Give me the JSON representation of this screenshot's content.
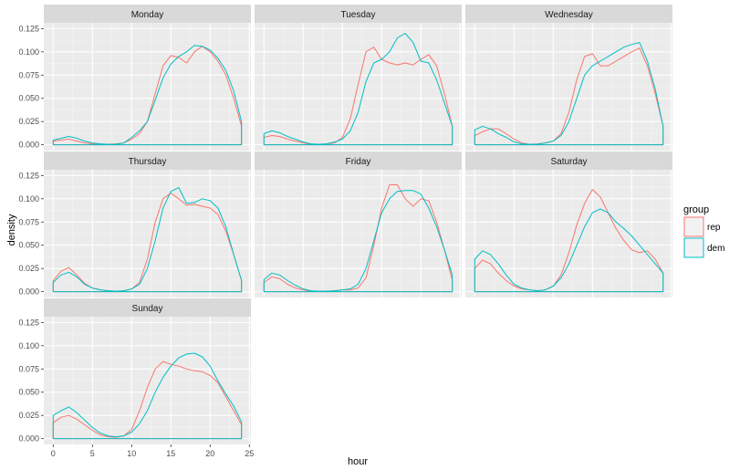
{
  "chart_data": {
    "type": "line",
    "subtype": "faceted density plot",
    "xlabel": "hour",
    "ylabel": "density",
    "xlim": [
      0,
      24
    ],
    "ylim": [
      0,
      0.125
    ],
    "x_ticks": [
      0,
      5,
      10,
      15,
      20,
      25
    ],
    "y_ticks": [
      0,
      0.025,
      0.05,
      0.075,
      0.1,
      0.125
    ],
    "y_tick_labels": [
      "0.000",
      "0.025",
      "0.050",
      "0.075",
      "0.100",
      "0.125"
    ],
    "legend": {
      "title": "group",
      "position": "right",
      "entries": [
        {
          "label": "rep",
          "color": "#F8766D"
        },
        {
          "label": "dem",
          "color": "#00BFC4"
        }
      ]
    },
    "x": [
      0,
      1,
      2,
      3,
      4,
      5,
      6,
      7,
      8,
      9,
      10,
      11,
      12,
      13,
      14,
      15,
      16,
      17,
      18,
      19,
      20,
      21,
      22,
      23,
      24
    ],
    "panels": [
      {
        "name": "Monday",
        "series": [
          {
            "name": "rep",
            "values": [
              0.004,
              0.005,
              0.006,
              0.004,
              0.002,
              0.001,
              0.0005,
              0.0005,
              0.001,
              0.002,
              0.006,
              0.012,
              0.025,
              0.055,
              0.085,
              0.096,
              0.094,
              0.088,
              0.1,
              0.106,
              0.1,
              0.09,
              0.075,
              0.05,
              0.02
            ]
          },
          {
            "name": "dem",
            "values": [
              0.005,
              0.007,
              0.009,
              0.007,
              0.004,
              0.002,
              0.001,
              0.0005,
              0.0005,
              0.002,
              0.008,
              0.015,
              0.025,
              0.048,
              0.072,
              0.087,
              0.095,
              0.1,
              0.107,
              0.106,
              0.102,
              0.093,
              0.08,
              0.058,
              0.025
            ]
          }
        ]
      },
      {
        "name": "Tuesday",
        "series": [
          {
            "name": "rep",
            "values": [
              0.008,
              0.01,
              0.009,
              0.006,
              0.004,
              0.002,
              0.0005,
              0.0005,
              0.001,
              0.002,
              0.008,
              0.028,
              0.065,
              0.1,
              0.105,
              0.092,
              0.088,
              0.086,
              0.088,
              0.086,
              0.092,
              0.097,
              0.085,
              0.055,
              0.02
            ]
          },
          {
            "name": "dem",
            "values": [
              0.012,
              0.015,
              0.013,
              0.009,
              0.006,
              0.003,
              0.001,
              0.0005,
              0.001,
              0.003,
              0.006,
              0.015,
              0.035,
              0.068,
              0.088,
              0.092,
              0.1,
              0.115,
              0.12,
              0.11,
              0.09,
              0.088,
              0.07,
              0.045,
              0.02
            ]
          }
        ]
      },
      {
        "name": "Wednesday",
        "series": [
          {
            "name": "rep",
            "values": [
              0.01,
              0.014,
              0.017,
              0.017,
              0.012,
              0.006,
              0.002,
              0.0005,
              0.001,
              0.002,
              0.004,
              0.012,
              0.035,
              0.07,
              0.095,
              0.098,
              0.085,
              0.085,
              0.09,
              0.095,
              0.1,
              0.104,
              0.085,
              0.055,
              0.02
            ]
          },
          {
            "name": "dem",
            "values": [
              0.016,
              0.02,
              0.017,
              0.012,
              0.008,
              0.003,
              0.001,
              0.0005,
              0.0005,
              0.002,
              0.004,
              0.01,
              0.025,
              0.05,
              0.075,
              0.085,
              0.09,
              0.095,
              0.1,
              0.105,
              0.108,
              0.11,
              0.09,
              0.06,
              0.02
            ]
          }
        ]
      },
      {
        "name": "Thursday",
        "series": [
          {
            "name": "rep",
            "values": [
              0.012,
              0.022,
              0.026,
              0.018,
              0.009,
              0.004,
              0.002,
              0.001,
              0.0005,
              0.001,
              0.003,
              0.01,
              0.035,
              0.075,
              0.1,
              0.106,
              0.1,
              0.093,
              0.094,
              0.092,
              0.09,
              0.083,
              0.065,
              0.04,
              0.012
            ]
          },
          {
            "name": "dem",
            "values": [
              0.01,
              0.018,
              0.021,
              0.016,
              0.008,
              0.004,
              0.002,
              0.001,
              0.0005,
              0.001,
              0.003,
              0.008,
              0.025,
              0.055,
              0.09,
              0.108,
              0.112,
              0.095,
              0.096,
              0.1,
              0.098,
              0.09,
              0.07,
              0.04,
              0.012
            ]
          }
        ]
      },
      {
        "name": "Friday",
        "series": [
          {
            "name": "rep",
            "values": [
              0.01,
              0.016,
              0.014,
              0.008,
              0.004,
              0.002,
              0.0005,
              0.0005,
              0.0005,
              0.001,
              0.002,
              0.002,
              0.004,
              0.015,
              0.05,
              0.09,
              0.115,
              0.115,
              0.1,
              0.092,
              0.1,
              0.098,
              0.075,
              0.045,
              0.012
            ]
          },
          {
            "name": "dem",
            "values": [
              0.013,
              0.02,
              0.018,
              0.012,
              0.007,
              0.003,
              0.001,
              0.0005,
              0.0005,
              0.001,
              0.002,
              0.003,
              0.008,
              0.025,
              0.055,
              0.085,
              0.1,
              0.108,
              0.109,
              0.109,
              0.105,
              0.09,
              0.07,
              0.045,
              0.018
            ]
          }
        ]
      },
      {
        "name": "Saturday",
        "series": [
          {
            "name": "rep",
            "values": [
              0.025,
              0.034,
              0.03,
              0.02,
              0.012,
              0.006,
              0.003,
              0.002,
              0.001,
              0.002,
              0.006,
              0.018,
              0.042,
              0.072,
              0.095,
              0.11,
              0.102,
              0.085,
              0.068,
              0.055,
              0.045,
              0.042,
              0.044,
              0.035,
              0.02
            ]
          },
          {
            "name": "dem",
            "values": [
              0.035,
              0.044,
              0.04,
              0.03,
              0.018,
              0.008,
              0.004,
              0.002,
              0.001,
              0.002,
              0.006,
              0.015,
              0.03,
              0.05,
              0.07,
              0.085,
              0.089,
              0.085,
              0.075,
              0.068,
              0.06,
              0.05,
              0.04,
              0.03,
              0.02
            ]
          }
        ]
      },
      {
        "name": "Sunday",
        "series": [
          {
            "name": "rep",
            "values": [
              0.017,
              0.023,
              0.025,
              0.021,
              0.015,
              0.009,
              0.004,
              0.002,
              0.0015,
              0.003,
              0.01,
              0.03,
              0.055,
              0.075,
              0.083,
              0.08,
              0.078,
              0.075,
              0.073,
              0.072,
              0.068,
              0.06,
              0.045,
              0.03,
              0.015
            ]
          },
          {
            "name": "dem",
            "values": [
              0.025,
              0.03,
              0.034,
              0.028,
              0.02,
              0.012,
              0.006,
              0.003,
              0.002,
              0.003,
              0.007,
              0.016,
              0.03,
              0.05,
              0.066,
              0.078,
              0.087,
              0.091,
              0.092,
              0.088,
              0.078,
              0.062,
              0.048,
              0.035,
              0.018
            ]
          }
        ]
      }
    ]
  }
}
